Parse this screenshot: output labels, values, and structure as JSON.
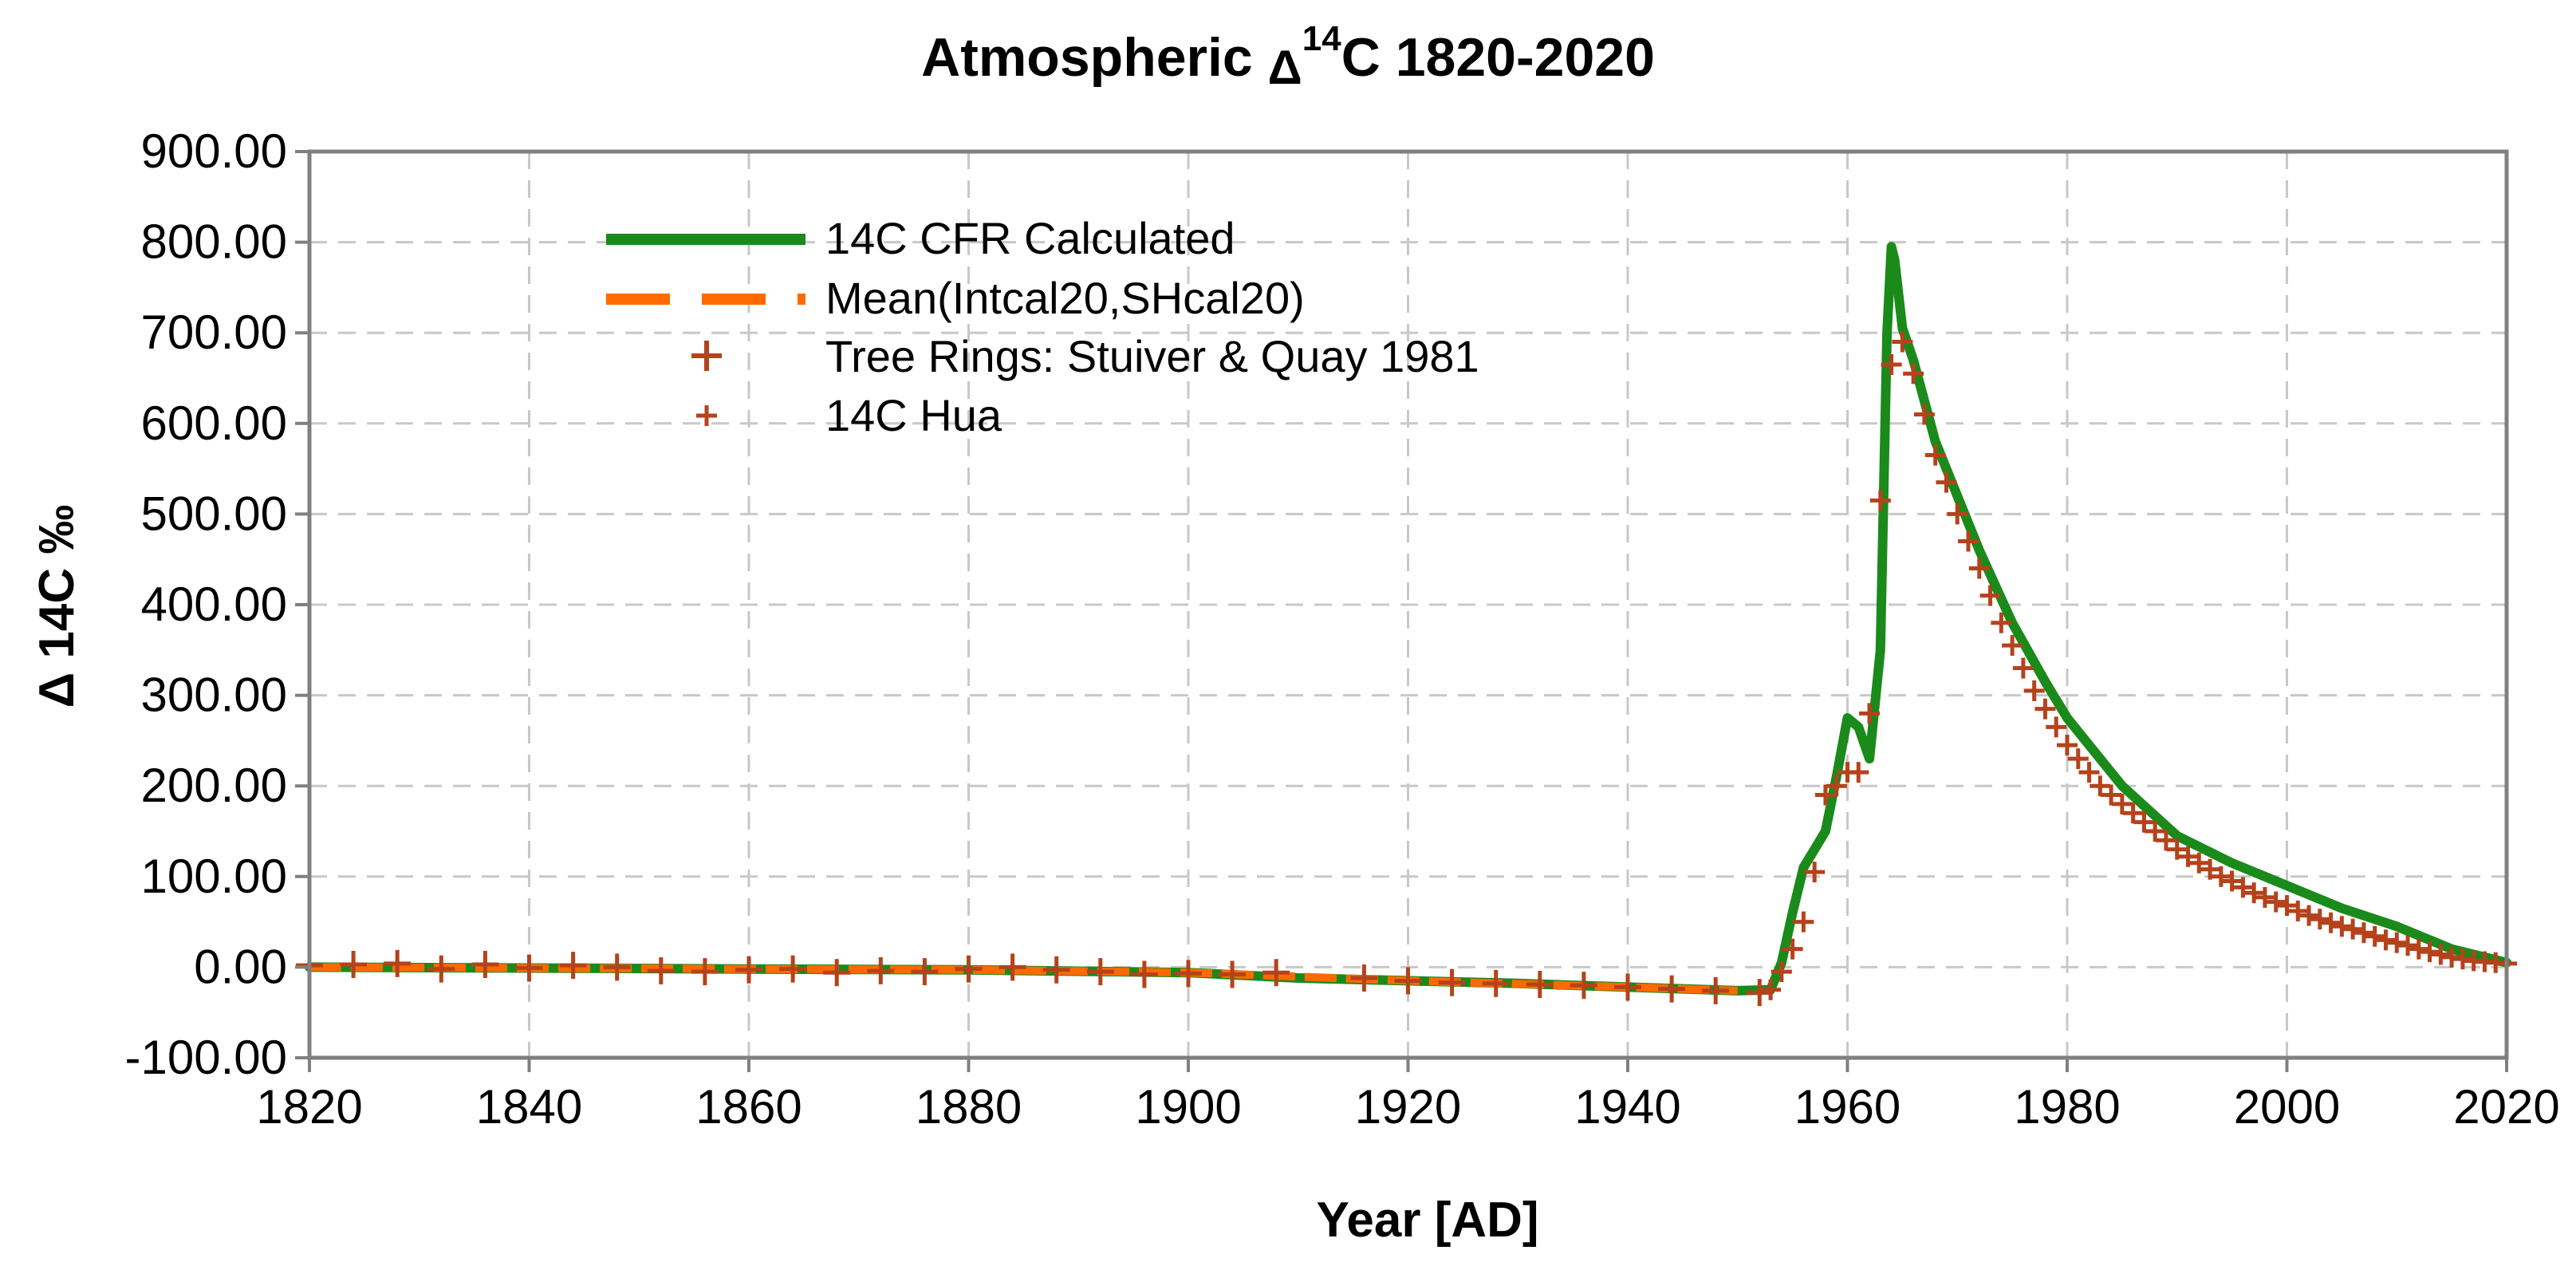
{
  "chart_data": {
    "type": "line",
    "title": {
      "prefix": "Atmospheric ",
      "delta": "Δ",
      "superscript": "14",
      "suffix": "C 1820-2020"
    },
    "xlabel": "Year [AD]",
    "ylabel": "Δ 14C ‰",
    "xlim": [
      1820,
      2020
    ],
    "ylim": [
      -100,
      900
    ],
    "x_ticks": [
      "1820",
      "1840",
      "1860",
      "1880",
      "1900",
      "1920",
      "1940",
      "1960",
      "1980",
      "2000",
      "2020"
    ],
    "y_ticks": [
      "-100.00",
      "0.00",
      "100.00",
      "200.00",
      "300.00",
      "400.00",
      "500.00",
      "600.00",
      "700.00",
      "800.00",
      "900.00"
    ],
    "grid": true,
    "legend_position": "top-left",
    "colors": {
      "cfr": "#1a8a1a",
      "intcal": "#ff6a00",
      "tree": "#b5421b",
      "hua": "#b5421b",
      "axis": "#808080",
      "grid": "#c8c8c8"
    },
    "series": [
      {
        "name": "14C CFR Calculated",
        "style": "solid",
        "x": [
          1820,
          1840,
          1860,
          1880,
          1900,
          1910,
          1920,
          1930,
          1940,
          1950,
          1953,
          1954,
          1955,
          1956,
          1957,
          1958,
          1959,
          1960,
          1961,
          1962,
          1963,
          1963.6,
          1964,
          1964.3,
          1965,
          1966,
          1967,
          1968,
          1970,
          1972,
          1975,
          1978,
          1980,
          1985,
          1990,
          1995,
          2000,
          2005,
          2010,
          2015,
          2020
        ],
        "y": [
          0,
          -1,
          -2,
          -3,
          -6,
          -12,
          -15,
          -18,
          -22,
          -26,
          -25,
          5,
          60,
          110,
          130,
          150,
          210,
          275,
          265,
          230,
          350,
          700,
          795,
          780,
          705,
          670,
          625,
          580,
          520,
          460,
          380,
          315,
          275,
          200,
          145,
          115,
          90,
          65,
          45,
          20,
          5
        ]
      },
      {
        "name": "Mean(Intcal20,SHcal20)",
        "style": "dashed",
        "x": [
          1820,
          1840,
          1860,
          1880,
          1900,
          1920,
          1940,
          1950
        ],
        "y": [
          0,
          -1,
          -2,
          -3,
          -6,
          -15,
          -22,
          -26
        ]
      },
      {
        "name": "Tree Rings: Stuiver & Quay 1981",
        "style": "marker-large",
        "x": [
          1820,
          1824,
          1828,
          1832,
          1836,
          1840,
          1844,
          1848,
          1852,
          1856,
          1860,
          1864,
          1868,
          1872,
          1876,
          1880,
          1884,
          1888,
          1892,
          1896,
          1900,
          1904,
          1908,
          1916,
          1920,
          1924,
          1928,
          1932,
          1936,
          1940,
          1944,
          1948,
          1952
        ],
        "y": [
          2,
          3,
          4,
          -2,
          3,
          -1,
          2,
          0,
          -4,
          -5,
          -3,
          -2,
          -6,
          -4,
          -5,
          -2,
          0,
          -3,
          -5,
          -8,
          -7,
          -8,
          -6,
          -12,
          -15,
          -17,
          -18,
          -19,
          -20,
          -22,
          -24,
          -26,
          -28
        ]
      },
      {
        "name": "14C Hua",
        "style": "marker-small",
        "x": [
          1953,
          1954,
          1955,
          1956,
          1957,
          1958,
          1959,
          1960,
          1961,
          1962,
          1963,
          1964,
          1965,
          1966,
          1967,
          1968,
          1969,
          1970,
          1971,
          1972,
          1973,
          1974,
          1975,
          1976,
          1977,
          1978,
          1979,
          1980,
          1981,
          1982,
          1983,
          1984,
          1985,
          1986,
          1987,
          1988,
          1989,
          1990,
          1991,
          1992,
          1993,
          1994,
          1995,
          1996,
          1997,
          1998,
          1999,
          2000,
          2001,
          2002,
          2003,
          2004,
          2005,
          2006,
          2007,
          2008,
          2009,
          2010,
          2011,
          2012,
          2013,
          2014,
          2015,
          2016,
          2017,
          2018,
          2019,
          2020
        ],
        "y": [
          -25,
          -5,
          20,
          50,
          105,
          190,
          200,
          215,
          215,
          280,
          515,
          665,
          690,
          655,
          610,
          565,
          535,
          500,
          470,
          440,
          410,
          380,
          355,
          330,
          305,
          285,
          265,
          245,
          230,
          215,
          200,
          190,
          180,
          170,
          160,
          150,
          140,
          130,
          122,
          115,
          108,
          100,
          95,
          88,
          82,
          77,
          72,
          68,
          62,
          57,
          53,
          49,
          45,
          42,
          38,
          34,
          30,
          27,
          24,
          20,
          17,
          14,
          11,
          9,
          7,
          6,
          5,
          4
        ]
      }
    ]
  }
}
